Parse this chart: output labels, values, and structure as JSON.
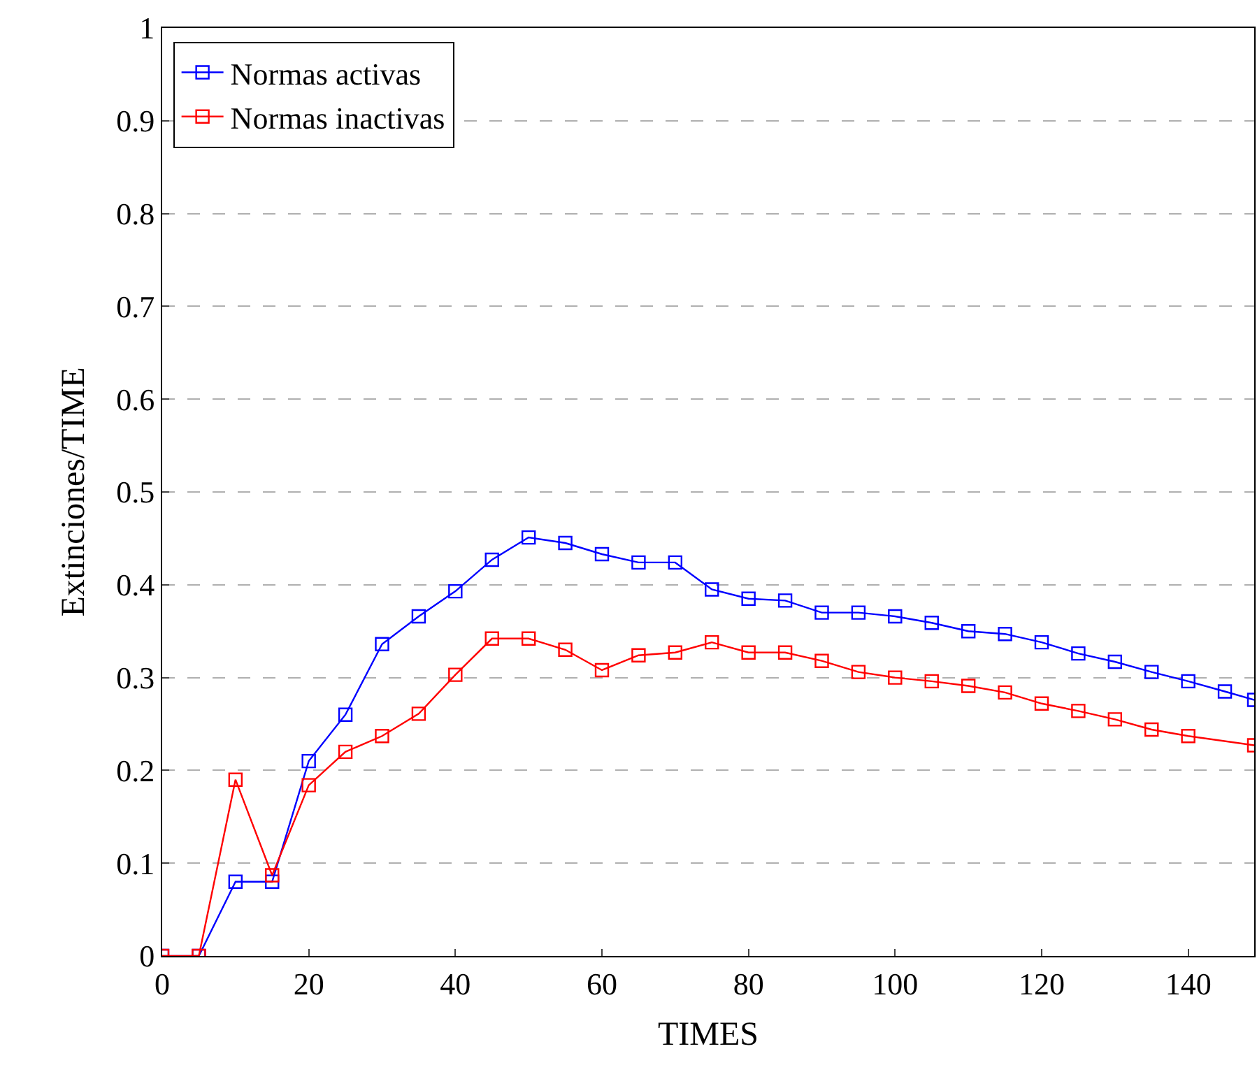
{
  "chart_data": {
    "type": "line",
    "xlabel": "TIMES",
    "ylabel": "Extinciones/TIME",
    "xlim": [
      0,
      149
    ],
    "xticks": [
      0,
      20,
      40,
      60,
      80,
      100,
      120,
      140
    ],
    "ylim": [
      0,
      1
    ],
    "yticks": [
      0,
      0.1,
      0.2,
      0.3,
      0.4,
      0.5,
      0.6,
      0.7,
      0.8,
      0.9,
      1
    ],
    "grid": "y",
    "legend": "top left",
    "marker": "square",
    "line_style": "solid",
    "series": [
      {
        "name": "Normas activas",
        "color": "#0000ff",
        "x": [
          0,
          5,
          10,
          15,
          20,
          25,
          30,
          35,
          40,
          45,
          50,
          55,
          60,
          65,
          70,
          75,
          80,
          85,
          90,
          95,
          100,
          105,
          110,
          115,
          120,
          125,
          130,
          135,
          140,
          145,
          149
        ],
        "values": [
          0,
          0,
          0.08,
          0.08,
          0.21,
          0.26,
          0.336,
          0.366,
          0.393,
          0.427,
          0.451,
          0.445,
          0.433,
          0.424,
          0.424,
          0.395,
          0.385,
          0.383,
          0.37,
          0.37,
          0.366,
          0.359,
          0.35,
          0.347,
          0.338,
          0.326,
          0.317,
          0.306,
          0.296,
          0.285,
          0.276
        ]
      },
      {
        "name": "Normas inactivas",
        "color": "#ff0000",
        "x": [
          0,
          5,
          10,
          15,
          20,
          25,
          30,
          35,
          40,
          45,
          50,
          55,
          60,
          65,
          70,
          75,
          80,
          85,
          90,
          95,
          100,
          105,
          110,
          115,
          120,
          125,
          130,
          135,
          140,
          149
        ],
        "values": [
          0,
          0,
          0.19,
          0.087,
          0.184,
          0.22,
          0.237,
          0.261,
          0.303,
          0.342,
          0.342,
          0.33,
          0.308,
          0.324,
          0.327,
          0.338,
          0.327,
          0.327,
          0.318,
          0.306,
          0.3,
          0.296,
          0.291,
          0.284,
          0.272,
          0.264,
          0.255,
          0.244,
          0.237,
          0.227
        ]
      }
    ]
  }
}
